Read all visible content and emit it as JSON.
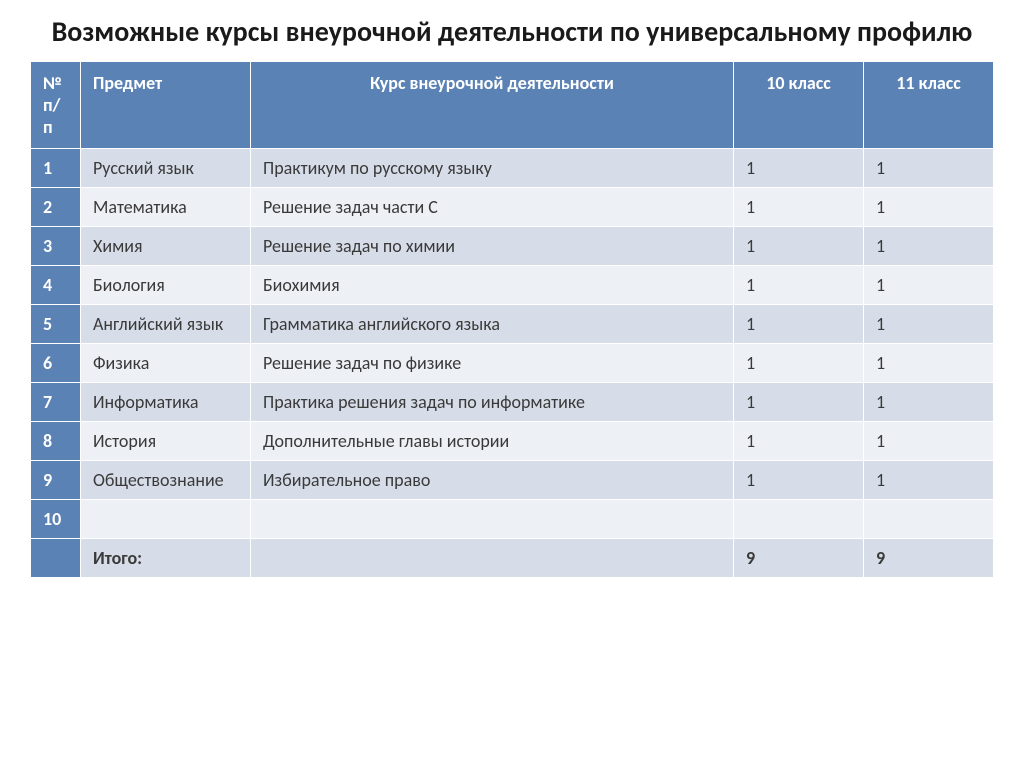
{
  "title": "Возможные курсы внеурочной деятельности по универсальному профилю",
  "headers": {
    "num": "№ п/п",
    "subject": "Предмет",
    "course": "Курс внеурочной деятельности",
    "grade10": "10 класс",
    "grade11": "11 класс"
  },
  "rows": [
    {
      "n": "1",
      "subject": "Русский язык",
      "course": "Практикум по русскому языку",
      "g10": "1",
      "g11": "1"
    },
    {
      "n": "2",
      "subject": "Математика",
      "course": "Решение задач части С",
      "g10": "1",
      "g11": "1"
    },
    {
      "n": "3",
      "subject": "Химия",
      "course": "Решение задач по химии",
      "g10": "1",
      "g11": "1"
    },
    {
      "n": "4",
      "subject": "Биология",
      "course": "Биохимия",
      "g10": "1",
      "g11": "1"
    },
    {
      "n": "5",
      "subject": "Английский язык",
      "course": "Грамматика английского языка",
      "g10": "1",
      "g11": "1"
    },
    {
      "n": "6",
      "subject": "Физика",
      "course": "Решение задач по физике",
      "g10": "1",
      "g11": "1"
    },
    {
      "n": "7",
      "subject": "Информатика",
      "course": "Практика решения задач по информатике",
      "g10": "1",
      "g11": "1"
    },
    {
      "n": "8",
      "subject": "История",
      "course": "Дополнительные главы истории",
      "g10": "1",
      "g11": "1"
    },
    {
      "n": "9",
      "subject": "Обществознание",
      "course": "Избирательное право",
      "g10": "1",
      "g11": "1"
    },
    {
      "n": "10",
      "subject": "",
      "course": "",
      "g10": "",
      "g11": ""
    }
  ],
  "total": {
    "label": "Итого:",
    "g10": "9",
    "g11": "9"
  },
  "colors": {
    "header_bg": "#5a82b4",
    "header_text": "#ffffff",
    "row_odd": "#d7dde8",
    "row_even": "#edf0f5",
    "text": "#3a3a3a"
  },
  "font": {
    "title_size": 28,
    "cell_size": 18,
    "family": "Calibri"
  }
}
